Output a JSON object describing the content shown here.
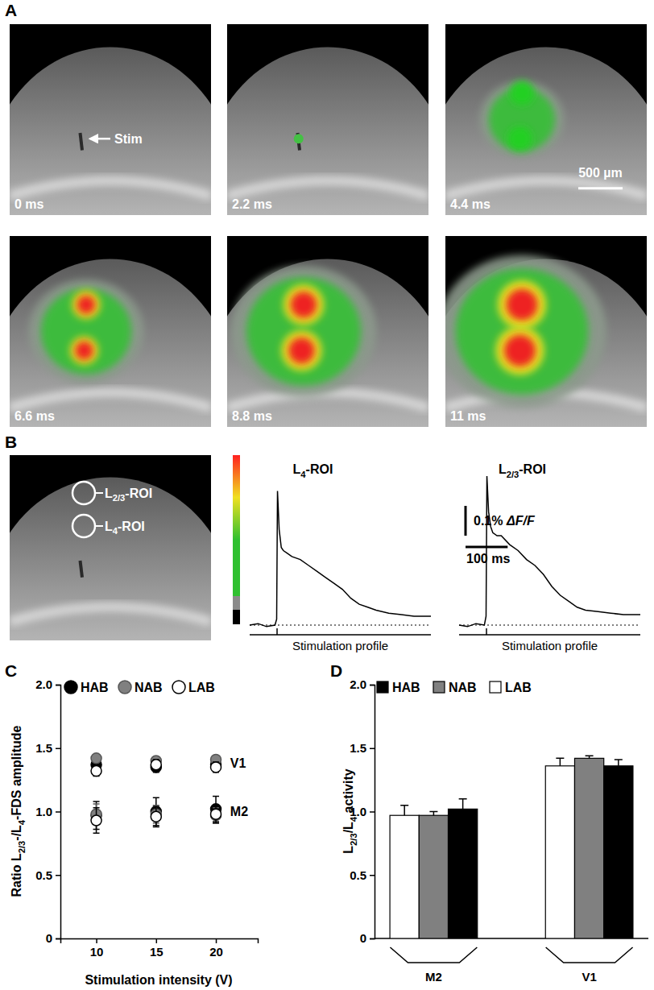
{
  "figure": {
    "panel_labels": [
      "A",
      "B",
      "C",
      "D"
    ],
    "panel_a": {
      "stim_label": "Stim",
      "frames": [
        "0 ms",
        "2.2 ms",
        "4.4 ms",
        "6.6 ms",
        "8.8 ms",
        "11 ms"
      ],
      "scale_bar": "500 µm"
    },
    "panel_b": {
      "rois": [
        "L2/3-ROI",
        "L4-ROI"
      ],
      "scale_bar_y": {
        "value": 0.1,
        "label": "0.1% ΔF/F"
      },
      "scale_bar_x": {
        "value": 100,
        "label": "100 ms"
      },
      "stimulus_label": "Stimulation profile",
      "stimulus_ms": 65,
      "traces": [
        {
          "title": "L4-ROI",
          "t_ms": [
            0,
            20,
            40,
            60,
            64,
            66,
            70,
            75,
            80,
            90,
            100,
            120,
            140,
            160,
            180,
            200,
            220,
            240,
            260,
            280,
            300,
            330,
            360,
            390,
            430
          ],
          "dff_percent": [
            0,
            0.005,
            -0.005,
            0,
            0.02,
            0.45,
            0.32,
            0.26,
            0.25,
            0.24,
            0.23,
            0.22,
            0.2,
            0.18,
            0.16,
            0.14,
            0.12,
            0.09,
            0.07,
            0.06,
            0.05,
            0.04,
            0.035,
            0.03,
            0.03
          ]
        },
        {
          "title": "L2/3-ROI",
          "t_ms": [
            0,
            20,
            40,
            60,
            64,
            66,
            70,
            75,
            80,
            90,
            100,
            120,
            140,
            160,
            180,
            200,
            220,
            240,
            260,
            280,
            300,
            330,
            360,
            390,
            430
          ],
          "dff_percent": [
            0,
            -0.005,
            0.005,
            0,
            0.03,
            0.5,
            0.38,
            0.33,
            0.31,
            0.3,
            0.3,
            0.27,
            0.25,
            0.22,
            0.2,
            0.17,
            0.13,
            0.1,
            0.08,
            0.06,
            0.05,
            0.045,
            0.04,
            0.035,
            0.035
          ]
        }
      ]
    }
  },
  "chart_data": [
    {
      "type": "scatter",
      "xlabel": "Stimulation intensity (V)",
      "ylabel": "Ratio L2/3-/L4-FDS amplitude",
      "x": [
        10,
        15,
        20
      ],
      "xlim": [
        7,
        23.5
      ],
      "xticks": [
        10,
        15,
        20
      ],
      "ylim": [
        0,
        2
      ],
      "yticks": [
        0,
        0.5,
        {
          "value": 1,
          "label": "1.0"
        },
        1.5,
        {
          "value": 2,
          "label": "2.0"
        }
      ],
      "legend": "top",
      "marker": "circle",
      "series": [
        {
          "name": "HAB",
          "color": "#000000",
          "values": [
            1.37,
            1.35,
            1.37
          ],
          "errors": [
            0.03,
            0.04,
            0.03
          ]
        },
        {
          "name": "NAB",
          "color": "#808080",
          "values": [
            1.42,
            1.4,
            1.41
          ],
          "errors": [
            0.03,
            0.03,
            0.03
          ]
        },
        {
          "name": "LAB",
          "color": "#ffffff",
          "values": [
            1.32,
            1.37,
            1.35
          ],
          "errors": [
            0.04,
            0.04,
            0.04
          ]
        },
        {
          "name": "HAB",
          "color": "#000000",
          "values": [
            0.97,
            1.0,
            1.02
          ],
          "errors": [
            0.11,
            0.11,
            0.1
          ]
        },
        {
          "name": "NAB",
          "color": "#808080",
          "values": [
            0.98,
            0.98,
            0.97
          ],
          "errors": [
            0.08,
            0.07,
            0.06
          ]
        },
        {
          "name": "LAB",
          "color": "#ffffff",
          "values": [
            0.93,
            0.96,
            0.98
          ],
          "errors": [
            0.1,
            0.08,
            0.07
          ]
        }
      ],
      "annotations": [
        {
          "text": "V1",
          "x": 21.2,
          "y": 1.38
        },
        {
          "text": "M2",
          "x": 21.2,
          "y": 1.0
        }
      ]
    },
    {
      "type": "bar",
      "ylabel": "L2/3/L4 activity",
      "categories": [
        "M2",
        "V1"
      ],
      "ylim": [
        0,
        2
      ],
      "yticks": [
        0,
        0.5,
        {
          "value": 1,
          "label": "1.0"
        },
        1.5,
        {
          "value": 2,
          "label": "2.0"
        }
      ],
      "legend": "top",
      "series": [
        {
          "name": "LAB",
          "color": "#ffffff",
          "values": [
            0.97,
            1.36
          ],
          "errors": [
            0.08,
            0.06
          ]
        },
        {
          "name": "NAB",
          "color": "#808080",
          "values": [
            0.97,
            1.42
          ],
          "errors": [
            0.03,
            0.02
          ]
        },
        {
          "name": "HAB",
          "color": "#000000",
          "values": [
            1.02,
            1.36
          ],
          "errors": [
            0.08,
            0.05
          ]
        }
      ]
    }
  ]
}
